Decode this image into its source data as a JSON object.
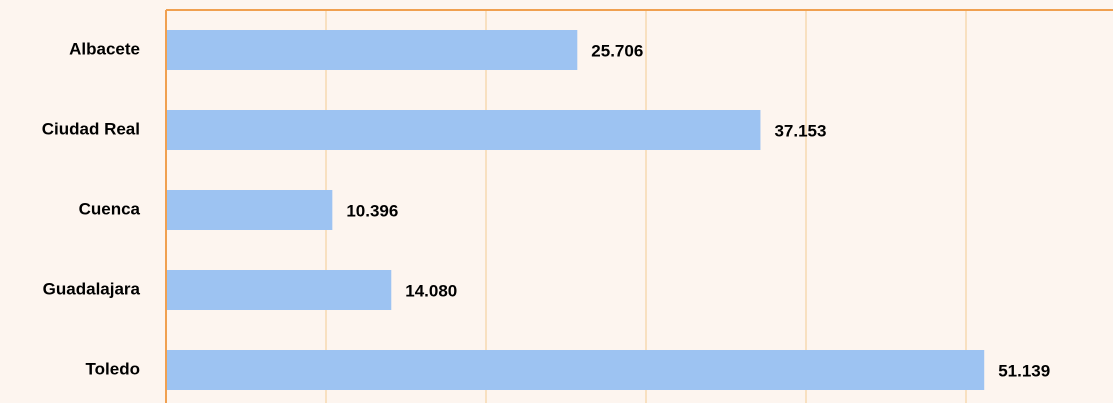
{
  "chart_data": {
    "type": "bar",
    "orientation": "horizontal",
    "categories": [
      "Albacete",
      "Ciudad Real",
      "Cuenca",
      "Guadalajara",
      "Toledo"
    ],
    "values": [
      25706,
      37153,
      10396,
      14080,
      51139
    ],
    "value_labels": [
      "25.706",
      "37.153",
      "10.396",
      "14.080",
      "51.139"
    ],
    "color": "#9dc3f2",
    "xlim": [
      0,
      60000
    ],
    "xticks": [
      0,
      10000,
      20000,
      30000,
      40000,
      50000,
      60000
    ],
    "grid": true
  }
}
